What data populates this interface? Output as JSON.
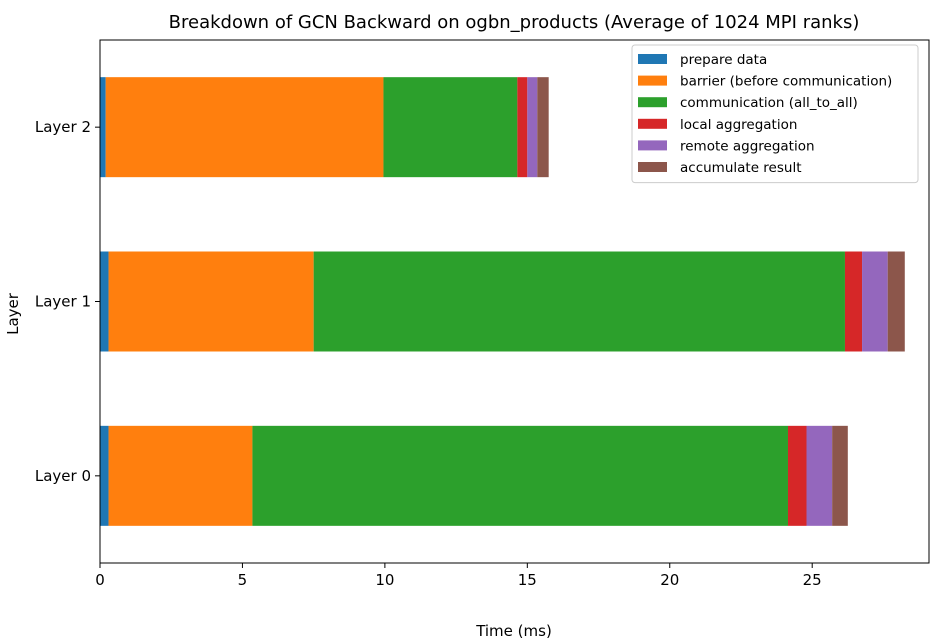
{
  "chart_data": {
    "type": "bar",
    "orientation": "horizontal",
    "stacked": true,
    "title": "Breakdown of GCN Backward on ogbn_products (Average of 1024 MPI ranks)",
    "xlabel": "Time (ms)",
    "ylabel": "Layer",
    "xlim": [
      0,
      29.1
    ],
    "xticks": [
      0,
      5,
      10,
      15,
      20,
      25
    ],
    "grid": false,
    "legend_position": "top-right",
    "categories": [
      "Layer 0",
      "Layer 1",
      "Layer 2"
    ],
    "series": [
      {
        "name": "prepare data",
        "color": "#1f77b4",
        "values": [
          0.3,
          0.3,
          0.2
        ]
      },
      {
        "name": "barrier (before communication)",
        "color": "#ff7f0e",
        "values": [
          5.05,
          7.2,
          9.75
        ]
      },
      {
        "name": "communication (all_to_all)",
        "color": "#2ca02c",
        "values": [
          18.8,
          18.65,
          4.7
        ]
      },
      {
        "name": "local aggregation",
        "color": "#d62728",
        "values": [
          0.65,
          0.6,
          0.35
        ]
      },
      {
        "name": "remote aggregation",
        "color": "#9467bd",
        "values": [
          0.9,
          0.9,
          0.35
        ]
      },
      {
        "name": "accumulate result",
        "color": "#8c564b",
        "values": [
          0.55,
          0.6,
          0.4
        ]
      }
    ]
  }
}
